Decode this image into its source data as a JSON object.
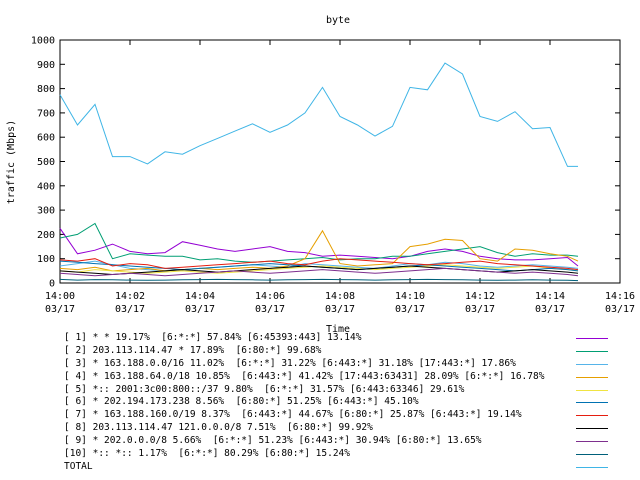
{
  "chart_data": {
    "type": "line",
    "title": "byte",
    "xlabel": "Time",
    "ylabel": "traffic (Mbps)",
    "ylim": [
      0,
      1000
    ],
    "xlim": [
      0,
      16
    ],
    "grid": false,
    "legend_position": "bottom",
    "yticks": [
      "0",
      "100",
      "200",
      "300",
      "400",
      "500",
      "600",
      "700",
      "800",
      "900",
      "1000"
    ],
    "xticks": [
      {
        "time": "14:00",
        "date": "03/17"
      },
      {
        "time": "14:02",
        "date": "03/17"
      },
      {
        "time": "14:04",
        "date": "03/17"
      },
      {
        "time": "14:06",
        "date": "03/17"
      },
      {
        "time": "14:08",
        "date": "03/17"
      },
      {
        "time": "14:10",
        "date": "03/17"
      },
      {
        "time": "14:12",
        "date": "03/17"
      },
      {
        "time": "14:14",
        "date": "03/17"
      },
      {
        "time": "14:16",
        "date": "03/17"
      }
    ],
    "x": [
      0,
      0.5,
      1,
      1.5,
      2,
      2.5,
      3,
      3.5,
      4,
      4.5,
      5,
      5.5,
      6,
      6.5,
      7,
      7.5,
      8,
      8.5,
      9,
      9.5,
      10,
      10.5,
      11,
      11.5,
      12,
      12.5,
      13,
      13.5,
      14,
      14.5,
      14.8
    ],
    "series": [
      {
        "name": "[ 1] * * 19.17%  [6:*:*] 57.84% [6:45393:443] 13.14%",
        "color": "#9400d3",
        "values": [
          225,
          120,
          135,
          160,
          130,
          120,
          125,
          170,
          155,
          140,
          130,
          140,
          150,
          130,
          125,
          110,
          115,
          110,
          105,
          100,
          110,
          130,
          140,
          130,
          110,
          100,
          95,
          95,
          100,
          105,
          70
        ]
      },
      {
        "name": "[ 2] 203.113.114.47 * 17.89%  [6:80:*] 99.68%",
        "color": "#009e73",
        "values": [
          185,
          200,
          245,
          100,
          120,
          115,
          110,
          110,
          95,
          100,
          90,
          85,
          90,
          95,
          100,
          105,
          95,
          100,
          100,
          110,
          110,
          120,
          130,
          140,
          150,
          125,
          110,
          120,
          115,
          115,
          110
        ]
      },
      {
        "name": "[ 3] * 163.188.0.0/16 11.02%  [6:*:*] 31.22% [6:443:*] 31.18% [17:443:*] 17.86%",
        "color": "#56b4e9",
        "values": [
          70,
          80,
          90,
          75,
          60,
          55,
          50,
          55,
          60,
          65,
          70,
          75,
          70,
          65,
          80,
          75,
          70,
          65,
          60,
          70,
          80,
          75,
          85,
          80,
          70,
          65,
          70,
          75,
          70,
          65,
          60
        ]
      },
      {
        "name": "[ 4] * 163.188.64.0/18 10.85%  [6:443:*] 41.42% [17:443:63431] 28.09% [6:*:*] 16.78%",
        "color": "#e69f00",
        "values": [
          60,
          55,
          65,
          50,
          55,
          60,
          50,
          55,
          60,
          55,
          60,
          65,
          60,
          70,
          100,
          215,
          80,
          70,
          75,
          80,
          150,
          160,
          180,
          175,
          100,
          90,
          140,
          135,
          120,
          110,
          90
        ]
      },
      {
        "name": "[ 5] *:: 2001:3c00:800::/37 9.80%  [6:*:*] 31.57% [6:443:63346] 29.61%",
        "color": "#f0e442",
        "values": [
          50,
          45,
          55,
          50,
          45,
          40,
          45,
          50,
          45,
          40,
          45,
          50,
          55,
          60,
          65,
          70,
          65,
          60,
          55,
          60,
          65,
          70,
          75,
          70,
          65,
          60,
          65,
          70,
          60,
          55,
          50
        ]
      },
      {
        "name": "[ 6] * 202.194.173.238 8.56%  [6:80:*] 51.25% [6:443:*] 45.10%",
        "color": "#0072b2",
        "values": [
          90,
          85,
          80,
          75,
          70,
          65,
          60,
          55,
          60,
          65,
          70,
          75,
          80,
          75,
          70,
          65,
          60,
          55,
          60,
          65,
          70,
          75,
          70,
          65,
          60,
          55,
          50,
          55,
          60,
          55,
          50
        ]
      },
      {
        "name": "[ 7] * 163.188.160.0/19 8.37%  [6:443:*] 44.67% [6:80:*] 25.87% [6:443:*] 19.14%",
        "color": "#e51e10",
        "values": [
          95,
          90,
          100,
          70,
          80,
          75,
          60,
          65,
          70,
          75,
          80,
          85,
          90,
          80,
          75,
          90,
          100,
          95,
          90,
          85,
          80,
          75,
          80,
          85,
          90,
          80,
          75,
          70,
          65,
          60,
          55
        ]
      },
      {
        "name": "[ 8] 203.113.114.47 121.0.0.0/8 7.51%  [6:80:*] 99.92%",
        "color": "#000000",
        "values": [
          50,
          45,
          40,
          35,
          40,
          45,
          50,
          55,
          50,
          45,
          50,
          55,
          60,
          65,
          70,
          65,
          60,
          55,
          60,
          65,
          70,
          65,
          60,
          55,
          50,
          45,
          50,
          55,
          50,
          45,
          40
        ]
      },
      {
        "name": "[ 9] * 202.0.0.0/8 5.66%  [6:*:*] 51.23% [6:443:*] 30.94% [6:80:*] 13.65%",
        "color": "#7e2f8e",
        "values": [
          40,
          35,
          30,
          35,
          40,
          35,
          30,
          35,
          40,
          45,
          50,
          45,
          40,
          45,
          50,
          55,
          50,
          45,
          40,
          45,
          50,
          55,
          60,
          55,
          50,
          45,
          40,
          45,
          40,
          35,
          30
        ]
      },
      {
        "name": "[10] *:: *:: 1.17%  [6:*:*] 80.29% [6:80:*] 15.24%",
        "color": "#00607a",
        "values": [
          15,
          12,
          14,
          13,
          12,
          11,
          12,
          13,
          14,
          15,
          14,
          13,
          12,
          13,
          14,
          15,
          14,
          13,
          12,
          13,
          14,
          15,
          14,
          13,
          12,
          11,
          12,
          13,
          12,
          11,
          10
        ]
      },
      {
        "name": "TOTAL",
        "color": "#3fb5e6",
        "values": [
          775,
          650,
          735,
          520,
          520,
          490,
          540,
          530,
          565,
          595,
          625,
          655,
          620,
          650,
          700,
          805,
          685,
          650,
          605,
          645,
          805,
          795,
          905,
          860,
          685,
          665,
          705,
          635,
          640,
          480,
          480
        ]
      }
    ]
  }
}
